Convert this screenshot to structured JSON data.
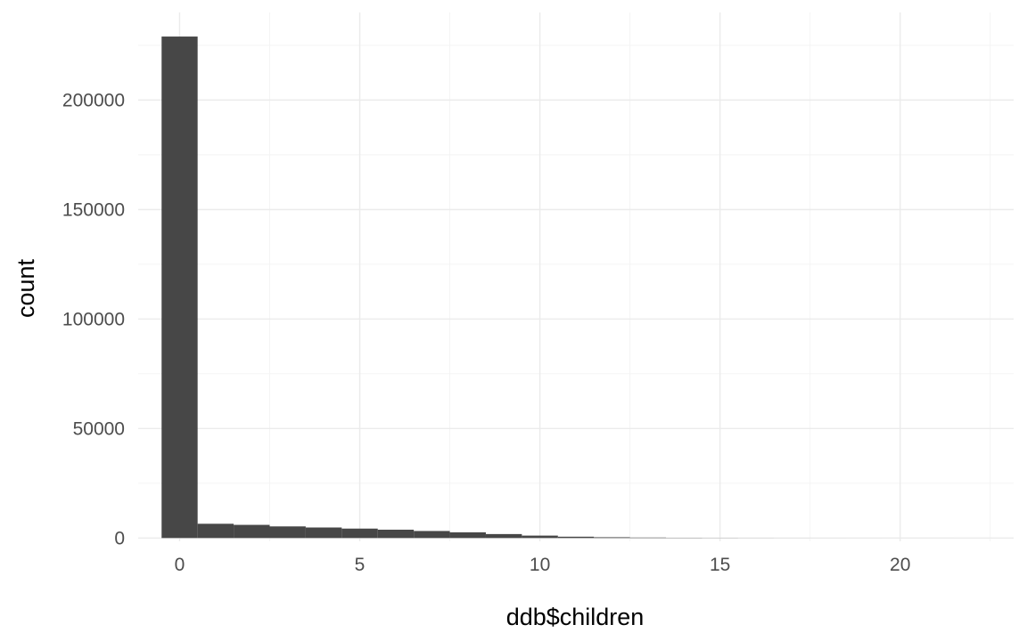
{
  "chart_data": {
    "type": "bar",
    "subtype": "histogram",
    "title": "",
    "xlabel": "ddb$children",
    "ylabel": "count",
    "xlim": [
      -1.15,
      23.15
    ],
    "ylim": [
      -1500,
      240000
    ],
    "x_ticks": [
      0,
      5,
      10,
      15,
      20
    ],
    "x_tick_labels": [
      "0",
      "5",
      "10",
      "15",
      "20"
    ],
    "y_ticks": [
      0,
      50000,
      100000,
      150000,
      200000
    ],
    "y_tick_labels": [
      "0",
      "50000",
      "100000",
      "150000",
      "200000"
    ],
    "grid": true,
    "legend": "none",
    "bar_color": "#474747",
    "bins": [
      {
        "x": 0,
        "count": 229000
      },
      {
        "x": 1,
        "count": 6500
      },
      {
        "x": 2,
        "count": 6000
      },
      {
        "x": 3,
        "count": 5300
      },
      {
        "x": 4,
        "count": 4800
      },
      {
        "x": 5,
        "count": 4300
      },
      {
        "x": 6,
        "count": 3800
      },
      {
        "x": 7,
        "count": 3200
      },
      {
        "x": 8,
        "count": 2600
      },
      {
        "x": 9,
        "count": 1800
      },
      {
        "x": 10,
        "count": 1100
      },
      {
        "x": 11,
        "count": 600
      },
      {
        "x": 12,
        "count": 350
      },
      {
        "x": 13,
        "count": 200
      },
      {
        "x": 14,
        "count": 100
      },
      {
        "x": 15,
        "count": 60
      },
      {
        "x": 16,
        "count": 30
      },
      {
        "x": 17,
        "count": 15
      },
      {
        "x": 18,
        "count": 8
      },
      {
        "x": 19,
        "count": 5
      },
      {
        "x": 20,
        "count": 3
      },
      {
        "x": 21,
        "count": 2
      },
      {
        "x": 22,
        "count": 1
      }
    ]
  }
}
